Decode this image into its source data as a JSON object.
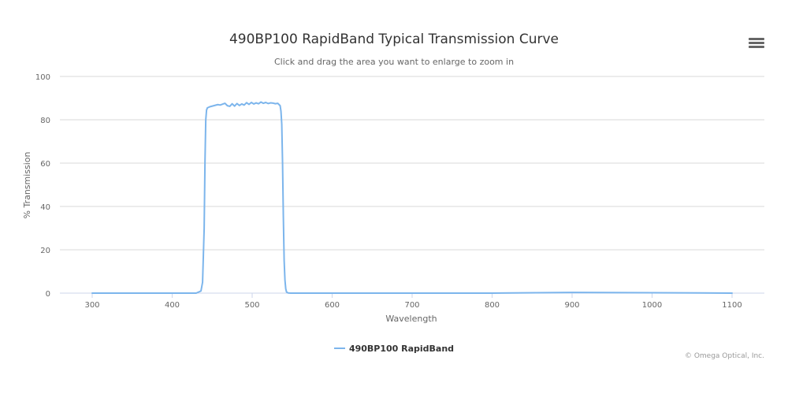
{
  "chart_data": {
    "type": "line",
    "title": "490BP100 RapidBand Typical Transmission Curve",
    "subtitle": "Click and drag the area you want to enlarge to zoom in",
    "xlabel": "Wavelength",
    "ylabel": "% Transmission",
    "xlim": [
      300,
      1100
    ],
    "ylim": [
      0,
      100
    ],
    "xticks": [
      300,
      400,
      500,
      600,
      700,
      800,
      900,
      1000,
      1100
    ],
    "yticks": [
      0,
      20,
      40,
      60,
      80,
      100
    ],
    "grid": true,
    "legend_position": "bottom-center",
    "credits": "© Omega Optical, Inc.",
    "series": [
      {
        "name": "490BP100 RapidBand",
        "color": "#7cb5ec",
        "x": [
          300,
          400,
          430,
          436,
          438,
          440,
          441,
          442,
          443,
          444,
          447,
          452,
          457,
          460,
          463,
          466,
          469,
          472,
          475,
          478,
          481,
          484,
          487,
          490,
          493,
          496,
          499,
          502,
          505,
          508,
          511,
          514,
          517,
          520,
          523,
          526,
          529,
          532,
          535,
          536,
          537,
          538,
          539,
          540,
          541,
          542,
          543,
          545,
          548,
          600,
          700,
          800,
          900,
          1000,
          1100
        ],
        "y": [
          0,
          0,
          0,
          1,
          5,
          30,
          60,
          80,
          84.5,
          85.5,
          86,
          86.5,
          87,
          86.8,
          87.2,
          87.6,
          86.5,
          86.2,
          87.4,
          86.3,
          87.5,
          86.6,
          87.3,
          86.8,
          87.9,
          87.1,
          88,
          87.3,
          87.8,
          87.4,
          88.2,
          87.6,
          88,
          87.5,
          87.8,
          87.7,
          87.4,
          87.6,
          86.5,
          84,
          78,
          60,
          35,
          15,
          6,
          2,
          0.5,
          0.1,
          0,
          0,
          0,
          0,
          0.3,
          0.2,
          0
        ]
      }
    ]
  },
  "ui": {
    "menu_icon": "hamburger-menu-icon"
  }
}
